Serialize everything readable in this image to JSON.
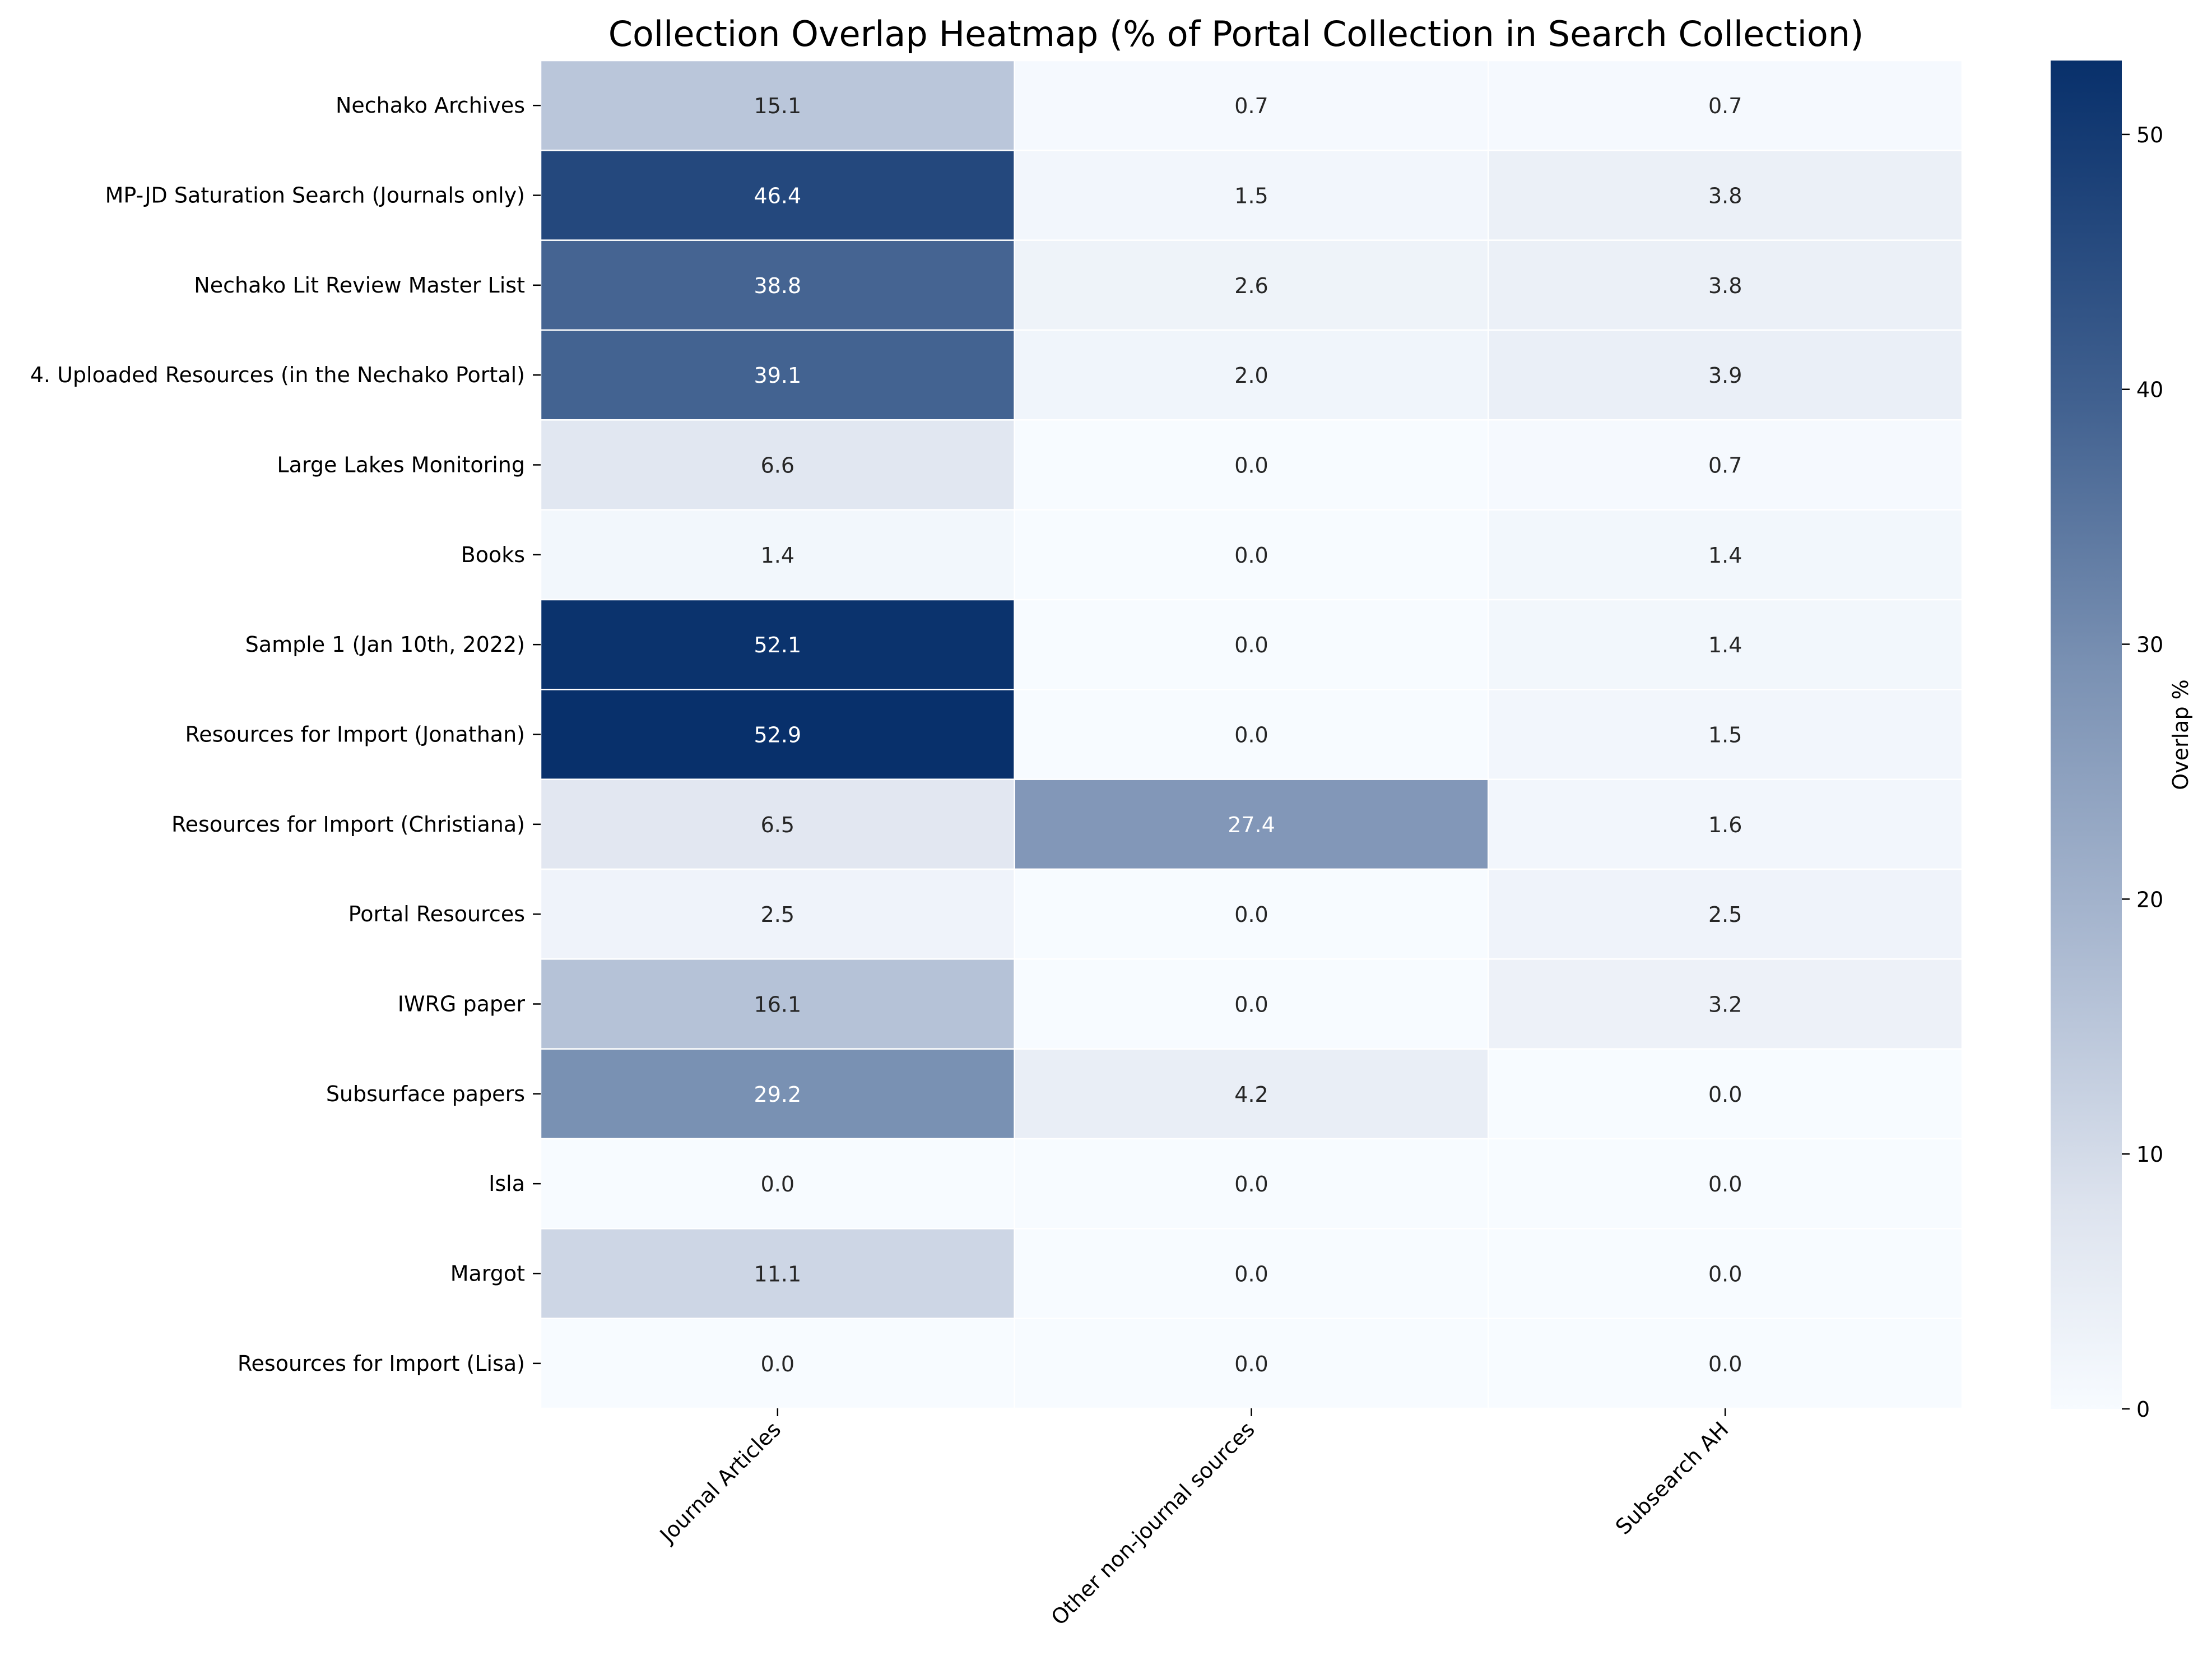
{
  "chart_data": {
    "type": "heatmap",
    "title": "Collection Overlap Heatmap (% of Portal Collection in Search Collection)",
    "xlabel": "",
    "ylabel": "",
    "columns": [
      "Journal Articles",
      "Other non-journal sources",
      "Subsearch AH"
    ],
    "rows": [
      "Nechako Archives",
      "MP-JD Saturation Search (Journals only)",
      "Nechako Lit Review Master List",
      "4. Uploaded Resources (in the Nechako Portal)",
      "Large Lakes Monitoring",
      "Books",
      "Sample 1 (Jan 10th, 2022)",
      "Resources for Import (Jonathan)",
      "Resources for Import (Christiana)",
      "Portal Resources",
      "IWRG paper",
      "Subsurface papers",
      "Isla",
      "Margot",
      "Resources for Import (Lisa)"
    ],
    "values": [
      [
        15.1,
        0.7,
        0.7
      ],
      [
        46.4,
        1.5,
        3.8
      ],
      [
        38.8,
        2.6,
        3.8
      ],
      [
        39.1,
        2.0,
        3.9
      ],
      [
        6.6,
        0.0,
        0.7
      ],
      [
        1.4,
        0.0,
        1.4
      ],
      [
        52.1,
        0.0,
        1.4
      ],
      [
        52.9,
        0.0,
        1.5
      ],
      [
        6.5,
        27.4,
        1.6
      ],
      [
        2.5,
        0.0,
        2.5
      ],
      [
        16.1,
        0.0,
        3.2
      ],
      [
        29.2,
        4.2,
        0.0
      ],
      [
        0.0,
        0.0,
        0.0
      ],
      [
        11.1,
        0.0,
        0.0
      ],
      [
        0.0,
        0.0,
        0.0
      ]
    ],
    "colorbar": {
      "label": "Overlap %",
      "min": 0,
      "max": 52.9,
      "ticks": [
        0,
        10,
        20,
        30,
        40,
        50
      ],
      "color_low": "#f7fbff",
      "color_high": "#08306b"
    },
    "cell_border_color": "#ffffff",
    "text_color_dark": "#262626",
    "text_color_light": "#ffffff"
  }
}
